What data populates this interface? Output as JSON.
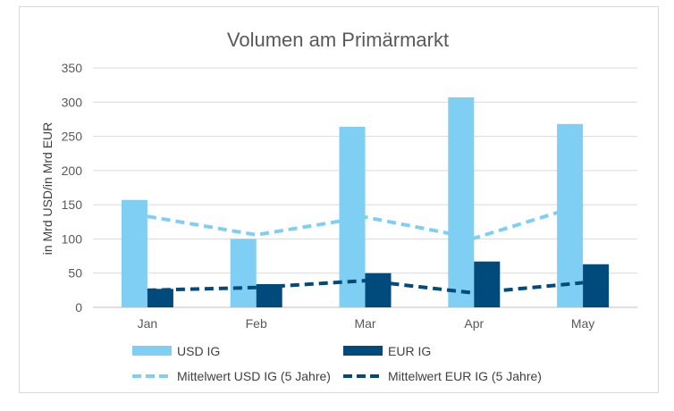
{
  "chart_data": {
    "type": "bar",
    "title": "Volumen am Primärmarkt",
    "xlabel": "",
    "ylabel": "in Mrd USD/in Mrd EUR",
    "ylim": [
      0,
      350
    ],
    "yticks": [
      "0",
      "50",
      "100",
      "150",
      "200",
      "250",
      "300",
      "350"
    ],
    "categories": [
      "Jan",
      "Feb",
      "Mar",
      "Apr",
      "May"
    ],
    "grid": true,
    "legend_position": "bottom",
    "series": [
      {
        "name": "USD IG",
        "kind": "bar",
        "color": "#7fcff5",
        "values": [
          157,
          100,
          264,
          307,
          268
        ]
      },
      {
        "name": "EUR IG",
        "kind": "bar",
        "color": "#004a7c",
        "values": [
          27,
          34,
          50,
          67,
          63
        ]
      },
      {
        "name": "Mittelwert USD IG (5 Jahre)",
        "kind": "dashed-line",
        "color": "#7fcff5",
        "values": [
          133,
          106,
          132,
          101,
          150
        ]
      },
      {
        "name": "Mittelwert EUR IG (5 Jahre)",
        "kind": "dashed-line",
        "color": "#004a7c",
        "values": [
          25,
          29,
          39,
          21,
          36
        ]
      }
    ]
  }
}
